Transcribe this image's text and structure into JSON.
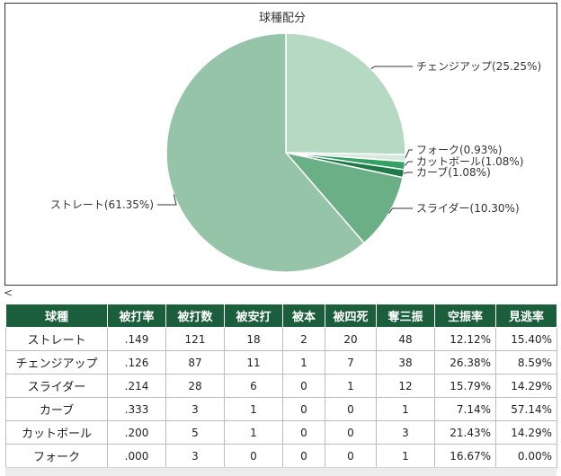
{
  "chart_data": {
    "type": "pie",
    "title": "球種配分",
    "slices": [
      {
        "label": "チェンジアップ(25.25%)",
        "value": 25.25,
        "color": "#b5d9c3"
      },
      {
        "label": "フォーク(0.93%)",
        "value": 0.93,
        "color": "#d7e9df"
      },
      {
        "label": "カットボール(1.08%)",
        "value": 1.08,
        "color": "#33a064"
      },
      {
        "label": "カーブ(1.08%)",
        "value": 1.08,
        "color": "#1e7a48"
      },
      {
        "label": "スライダー(10.30%)",
        "value": 10.3,
        "color": "#6aaf86"
      },
      {
        "label": "ストレート(61.35%)",
        "value": 61.35,
        "color": "#95c4a8"
      }
    ]
  },
  "scroll_indicator": "<",
  "table": {
    "headers": [
      "球種",
      "被打率",
      "被打数",
      "被安打",
      "被本",
      "被四死",
      "奪三振",
      "空振率",
      "見逃率"
    ],
    "rows": [
      [
        "ストレート",
        ".149",
        "121",
        "18",
        "2",
        "20",
        "48",
        "12.12%",
        "15.40%"
      ],
      [
        "チェンジアップ",
        ".126",
        "87",
        "11",
        "1",
        "7",
        "38",
        "26.38%",
        "8.59%"
      ],
      [
        "スライダー",
        ".214",
        "28",
        "6",
        "0",
        "1",
        "12",
        "15.79%",
        "14.29%"
      ],
      [
        "カーブ",
        ".333",
        "3",
        "1",
        "0",
        "0",
        "1",
        "7.14%",
        "57.14%"
      ],
      [
        "カットボール",
        ".200",
        "5",
        "1",
        "0",
        "0",
        "3",
        "21.43%",
        "14.29%"
      ],
      [
        "フォーク",
        ".000",
        "3",
        "0",
        "0",
        "0",
        "1",
        "16.67%",
        "0.00%"
      ]
    ]
  }
}
